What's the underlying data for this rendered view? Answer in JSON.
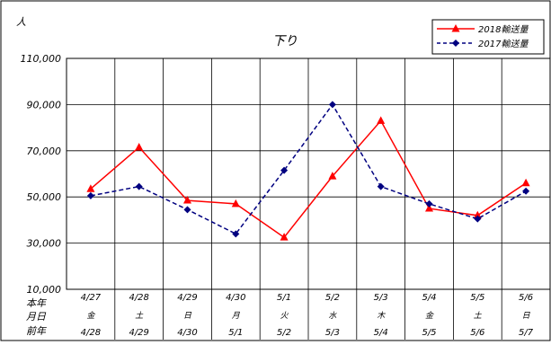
{
  "chart_data": {
    "type": "line",
    "title": "下り",
    "ylabel": "人",
    "ylim": [
      10000,
      110000
    ],
    "yticks": [
      "10,000",
      "30,000",
      "50,000",
      "70,000",
      "90,000",
      "110,000"
    ],
    "categories": [
      "4/27",
      "4/28",
      "4/29",
      "4/30",
      "5/1",
      "5/2",
      "5/3",
      "5/4",
      "5/5",
      "5/6"
    ],
    "weekdays": [
      "金",
      "土",
      "日",
      "月",
      "火",
      "水",
      "木",
      "金",
      "土",
      "日"
    ],
    "prev_dates": [
      "4/28",
      "4/29",
      "4/30",
      "5/1",
      "5/2",
      "5/3",
      "5/4",
      "5/5",
      "5/6",
      "5/7"
    ],
    "row_labels": [
      "本年",
      "月日",
      "前年"
    ],
    "grid": true,
    "legend": "top-right",
    "series": [
      {
        "name": "2018輸送量",
        "color": "#ff0000",
        "marker": "triangle",
        "dash": "solid",
        "values": [
          53500,
          71500,
          48500,
          47000,
          32500,
          59000,
          83000,
          45000,
          42000,
          56000
        ]
      },
      {
        "name": "2017輸送量",
        "color": "#000080",
        "marker": "diamond",
        "dash": "dashed",
        "values": [
          50500,
          54500,
          44500,
          34000,
          61500,
          90000,
          54500,
          47000,
          40500,
          52500
        ]
      }
    ]
  }
}
